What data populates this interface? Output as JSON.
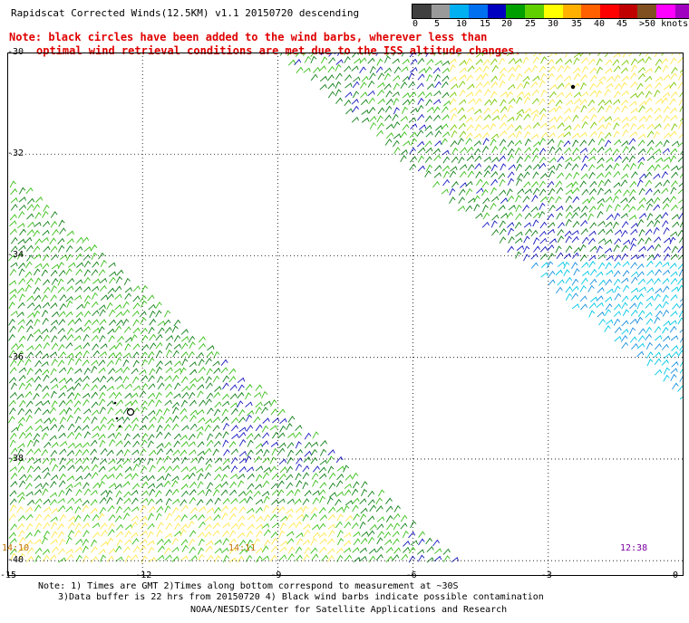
{
  "title": "Rapidscat Corrected Winds(12.5KM) v1.1 20150720 descending",
  "note_line1": "Note: black circles have been added to the wind barbs, wherever less than",
  "note_line2": "optimal wind retrieval conditions are met due to the ISS altitude changes.",
  "legend": {
    "labels": [
      "0",
      "5",
      "10",
      "15",
      "20",
      "25",
      "30",
      "35",
      "40",
      "45",
      ">50 knots"
    ],
    "colors": [
      "#404040",
      "#9a9a9a",
      "#00b0f0",
      "#0070f0",
      "#0000c0",
      "#00a000",
      "#60d000",
      "#ffff00",
      "#ffb000",
      "#ff6000",
      "#ff0000",
      "#c00000",
      "#805020",
      "#ff00ff",
      "#a000c0",
      "#400080"
    ]
  },
  "map": {
    "lat_labels": [
      "-30",
      "-32",
      "-34",
      "-36",
      "-38",
      "-40"
    ],
    "lon_labels": [
      "-15",
      "-12",
      "-9",
      "-6",
      "-3",
      "0"
    ],
    "lat_values": [
      -30,
      -32,
      -34,
      -36,
      -38,
      -40
    ],
    "lon_values": [
      -15,
      -12,
      -9,
      -6,
      -3,
      0
    ],
    "lat_range": [
      -30,
      -40.3
    ],
    "lon_range": [
      -15,
      0
    ],
    "pass_times": [
      "14:10",
      "14:11",
      "12:38"
    ]
  },
  "footer": {
    "line1": "Note: 1) Times are GMT 2)Times along bottom correspond to measurement at ~30S",
    "line2": "3)Data buffer is 22 hrs from 20150720 4) Black wind barbs indicate possible contamination",
    "line3": "NOAA/NESDIS/Center for Satellite Applications and Research"
  }
}
